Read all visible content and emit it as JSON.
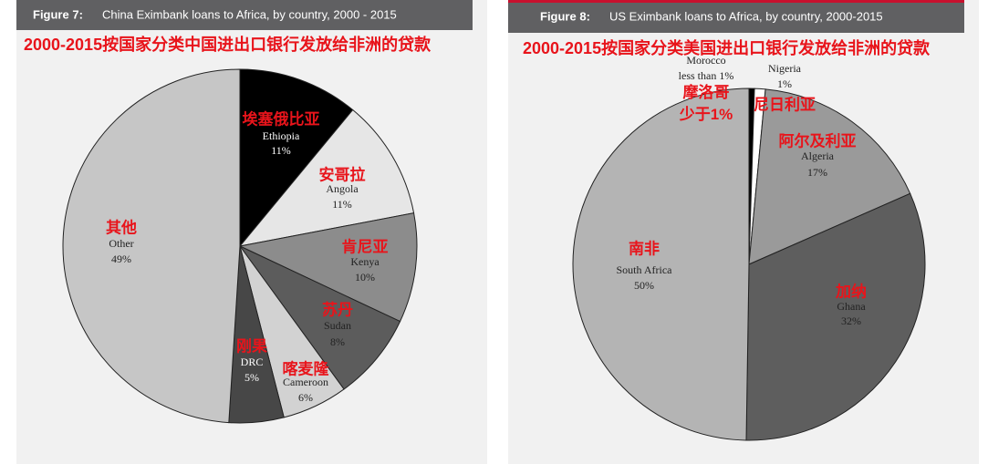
{
  "chart_data": [
    {
      "type": "pie",
      "figure_label": "Figure 7:",
      "title": "China Eximbank loans to Africa, by country, 2000 - 2015",
      "subtitle": "2000-2015按国家分类中国进出口银行发放给非洲的贷款",
      "categories": [
        "Ethiopia",
        "Angola",
        "Kenya",
        "Sudan",
        "Cameroon",
        "DRC",
        "Other"
      ],
      "categories_zh": [
        "埃塞俄比亚",
        "安哥拉",
        "肯尼亚",
        "苏丹",
        "喀麦隆",
        "刚果",
        "其他"
      ],
      "values": [
        11,
        11,
        10,
        8,
        6,
        5,
        49
      ],
      "value_labels": [
        "11%",
        "11%",
        "10%",
        "8%",
        "6%",
        "5%",
        "49%"
      ],
      "colors": [
        "#000000",
        "#e6e6e6",
        "#8c8c8c",
        "#5c5c5c",
        "#d2d2d2",
        "#474747",
        "#c6c6c6"
      ]
    },
    {
      "type": "pie",
      "figure_label": "Figure 8:",
      "title": "US Eximbank loans to Africa, by country, 2000-2015",
      "subtitle": "2000-2015按国家分类美国进出口银行发放给非洲的贷款",
      "categories": [
        "Morocco",
        "Nigeria",
        "Algeria",
        "Ghana",
        "South Africa"
      ],
      "categories_zh": [
        "摩洛哥 少于1%",
        "尼日利亚",
        "阿尔及利亚",
        "加纳",
        "南非"
      ],
      "values": [
        0.5,
        1,
        17,
        32,
        50
      ],
      "value_labels": [
        "less than 1%",
        "1%",
        "17%",
        "32%",
        "50%"
      ],
      "colors": [
        "#000000",
        "#ffffff",
        "#9a9a9a",
        "#5e5e5e",
        "#b4b4b4"
      ]
    }
  ]
}
